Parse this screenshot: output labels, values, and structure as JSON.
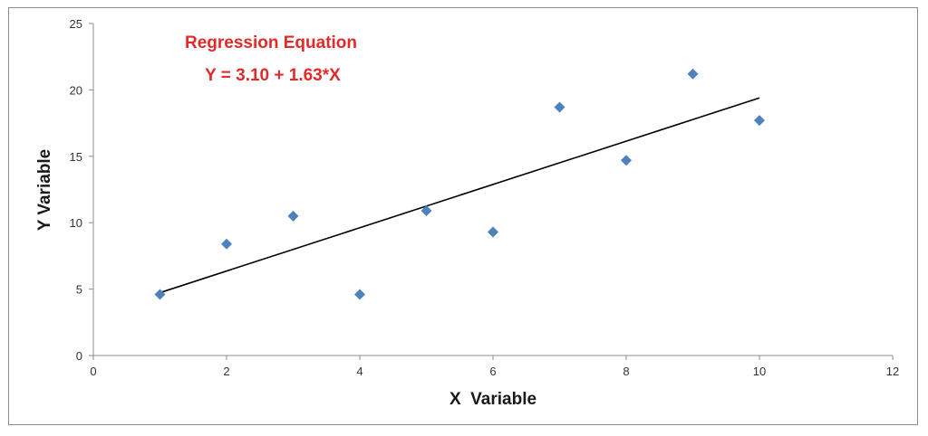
{
  "chart_data": {
    "type": "scatter",
    "title": "",
    "xlabel": "X  Variable",
    "ylabel": "Y Variable",
    "xlim": [
      0,
      12
    ],
    "ylim": [
      0,
      25
    ],
    "xticks": [
      0,
      2,
      4,
      6,
      8,
      10,
      12
    ],
    "yticks": [
      0,
      5,
      10,
      15,
      20,
      25
    ],
    "grid": false,
    "legend": "none",
    "series": [
      {
        "marker": "diamond",
        "color": "#4f81bd",
        "points": [
          {
            "x": 1,
            "y": 4.6
          },
          {
            "x": 2,
            "y": 8.4
          },
          {
            "x": 3,
            "y": 10.5
          },
          {
            "x": 4,
            "y": 4.6
          },
          {
            "x": 5,
            "y": 10.9
          },
          {
            "x": 6,
            "y": 9.3
          },
          {
            "x": 7,
            "y": 18.7
          },
          {
            "x": 8,
            "y": 14.7
          },
          {
            "x": 9,
            "y": 21.2
          },
          {
            "x": 10,
            "y": 17.7
          }
        ]
      }
    ],
    "trendline": {
      "intercept": 3.1,
      "slope": 1.63,
      "x_range": [
        1,
        10
      ],
      "color": "#000000"
    },
    "annotations": [
      {
        "text": "Regression Equation",
        "color": "#e02b2b"
      },
      {
        "text": "Y = 3.10 + 1.63*X",
        "color": "#e02b2b"
      }
    ]
  }
}
